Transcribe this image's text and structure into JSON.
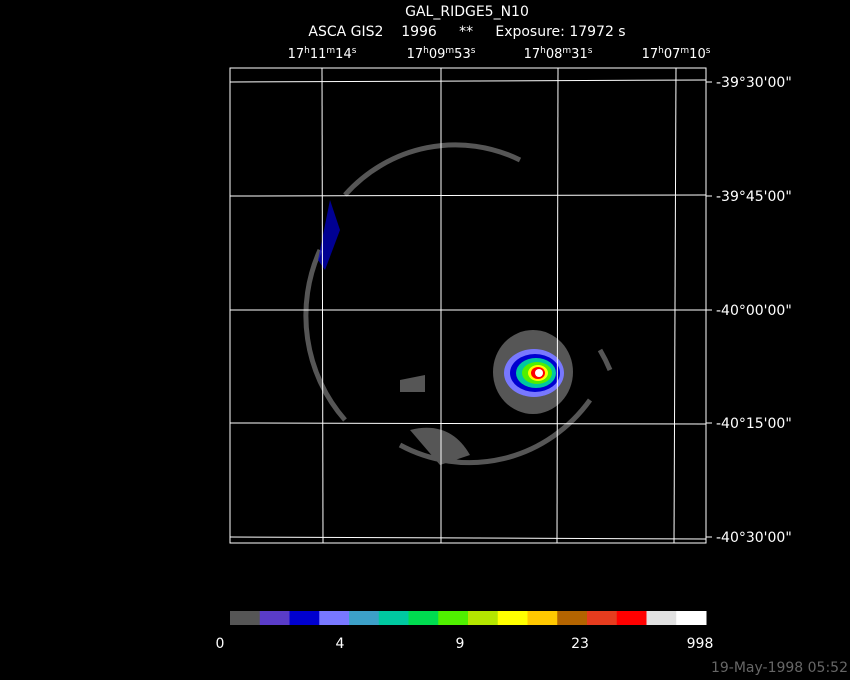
{
  "header": {
    "title": "GAL_RIDGE5_N10",
    "subtitle": "ASCA GIS2    1996     **     Exposure: 17972 s"
  },
  "ra_labels": [
    [
      "17",
      "h",
      "11",
      "m",
      "14",
      "s"
    ],
    [
      "17",
      "h",
      "09",
      "m",
      "53",
      "s"
    ],
    [
      "17",
      "h",
      "08",
      "m",
      "31",
      "s"
    ],
    [
      "17",
      "h",
      "07",
      "m",
      "10",
      "s"
    ]
  ],
  "dec_labels": [
    "-39°30'00\"",
    "-39°45'00\"",
    "-40°00'00\"",
    "-40°15'00\"",
    "-40°30'00\""
  ],
  "colorbar": {
    "colors": [
      "#565656",
      "#5a3cc8",
      "#0000d0",
      "#7878ff",
      "#3ca0c8",
      "#00c8a0",
      "#00dc50",
      "#50f000",
      "#b4e600",
      "#ffff00",
      "#ffc800",
      "#b46400",
      "#e63c1e",
      "#ff0000",
      "#e1e1e1",
      "#ffffff"
    ],
    "labels": [
      "0",
      "4",
      "9",
      "23",
      "998"
    ]
  },
  "footer": {
    "timestamp": "19-May-1998 05:52"
  }
}
